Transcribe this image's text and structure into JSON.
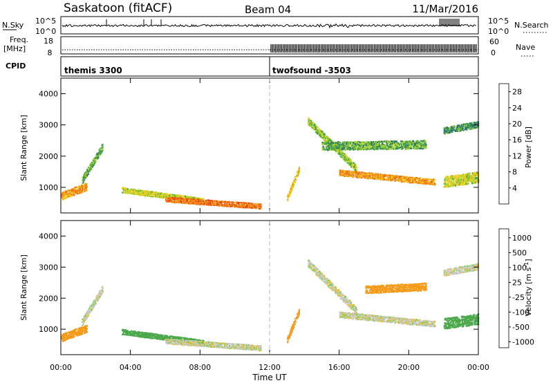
{
  "header": {
    "station": "Saskatoon (fitACF)",
    "beam": "Beam 04",
    "date": "11/Mar/2016"
  },
  "noise_panel": {
    "left_label": "N.Sky",
    "right_label": "N.Search",
    "left_ticks": [
      "10^5",
      "10^0"
    ],
    "right_ticks": [
      "10^5",
      "10^0"
    ]
  },
  "freq_panel": {
    "left_label_1": "Freq.",
    "left_label_2": "[MHz]",
    "left_ticks": [
      "18",
      "8"
    ],
    "right_label": "Nave",
    "right_ticks": [
      "60",
      "0"
    ]
  },
  "cpid_panel": {
    "label": "CPID",
    "modes": [
      {
        "name": "themis 3300",
        "start_hour": 0,
        "end_hour": 12
      },
      {
        "name": "twofsound -3503",
        "start_hour": 12,
        "end_hour": 24
      }
    ]
  },
  "chart_data": [
    {
      "type": "heatmap",
      "title": "",
      "quantity": "Power",
      "ylabel": "Slant Range [km]",
      "xlabel": "",
      "x_ticks": [
        "00:00",
        "04:00",
        "08:00",
        "12:00",
        "16:00",
        "20:00",
        "00:00"
      ],
      "xlim": [
        0,
        24
      ],
      "ylim": [
        180,
        4500
      ],
      "y_ticks": [
        1000,
        2000,
        3000,
        4000
      ],
      "colorbar": {
        "label": "Power [dB]",
        "ticks": [
          "4",
          "8",
          "12",
          "16",
          "20",
          "24",
          "28"
        ],
        "range": [
          0,
          30
        ],
        "colors": [
          "#1c1ce0",
          "#2850b4",
          "#307a5a",
          "#46a84a",
          "#b2d32a",
          "#f2cc1c",
          "#f59a18",
          "#f06a16",
          "#e03218"
        ]
      },
      "echo_bands": [
        {
          "t_start": 0.0,
          "t_end": 1.5,
          "range_start": 700,
          "range_end": 1000,
          "width": 260,
          "value": 22
        },
        {
          "t_start": 1.2,
          "t_end": 2.4,
          "range_start": 1200,
          "range_end": 2300,
          "width": 230,
          "value": 12
        },
        {
          "t_start": 3.5,
          "t_end": 8.2,
          "range_start": 900,
          "range_end": 550,
          "width": 180,
          "value": 16
        },
        {
          "t_start": 6.0,
          "t_end": 11.5,
          "range_start": 600,
          "range_end": 380,
          "width": 180,
          "value": 24
        },
        {
          "t_start": 13.0,
          "t_end": 13.7,
          "range_start": 650,
          "range_end": 1600,
          "width": 200,
          "value": 20
        },
        {
          "t_start": 14.2,
          "t_end": 17.0,
          "range_start": 3100,
          "range_end": 1550,
          "width": 250,
          "value": 14
        },
        {
          "t_start": 16.0,
          "t_end": 21.5,
          "range_start": 1450,
          "range_end": 1150,
          "width": 200,
          "value": 22
        },
        {
          "t_start": 15.0,
          "t_end": 21.0,
          "range_start": 2300,
          "range_end": 2350,
          "width": 280,
          "value": 12
        },
        {
          "t_start": 22.0,
          "t_end": 24.0,
          "range_start": 1150,
          "range_end": 1300,
          "width": 350,
          "value": 16
        },
        {
          "t_start": 22.0,
          "t_end": 24.0,
          "range_start": 2800,
          "range_end": 3000,
          "width": 220,
          "value": 10
        }
      ]
    },
    {
      "type": "heatmap",
      "title": "",
      "quantity": "Velocity",
      "ylabel": "Slant Range [km]",
      "xlabel": "Time UT",
      "x_ticks": [
        "00:00",
        "04:00",
        "08:00",
        "12:00",
        "16:00",
        "20:00",
        "00:00"
      ],
      "xlim": [
        0,
        24
      ],
      "ylim": [
        180,
        4500
      ],
      "y_ticks": [
        1000,
        2000,
        3000,
        4000
      ],
      "colorbar": {
        "label": "Velocity [m s^-1]",
        "unit_main": "Velocity [m s",
        "unit_exp": "-1",
        "unit_end": "]",
        "ticks": [
          "1000",
          "500",
          "100",
          "25",
          "-25",
          "-100",
          "-500",
          "-1000"
        ],
        "colors": [
          "#1a3fb0",
          "#2a7a7a",
          "#4aa84a",
          "#7ad04a",
          "#c8c8c4",
          "#c8c8c4",
          "#f0c020",
          "#f59a18",
          "#ee6a16",
          "#e02818"
        ]
      },
      "echo_bands": [
        {
          "t_start": 0.0,
          "t_end": 1.5,
          "range_start": 700,
          "range_end": 1000,
          "width": 260,
          "value": -150
        },
        {
          "t_start": 1.2,
          "t_end": 2.4,
          "range_start": 1200,
          "range_end": 2300,
          "width": 230,
          "value": 0
        },
        {
          "t_start": 3.5,
          "t_end": 8.2,
          "range_start": 900,
          "range_end": 550,
          "width": 180,
          "value": 150
        },
        {
          "t_start": 6.0,
          "t_end": 11.5,
          "range_start": 600,
          "range_end": 380,
          "width": 180,
          "value": 0
        },
        {
          "t_start": 13.0,
          "t_end": 13.7,
          "range_start": 650,
          "range_end": 1600,
          "width": 200,
          "value": -300
        },
        {
          "t_start": 14.2,
          "t_end": 17.0,
          "range_start": 3100,
          "range_end": 1550,
          "width": 250,
          "value": 0
        },
        {
          "t_start": 16.0,
          "t_end": 21.5,
          "range_start": 1450,
          "range_end": 1150,
          "width": 200,
          "value": 0
        },
        {
          "t_start": 17.5,
          "t_end": 21.0,
          "range_start": 2250,
          "range_end": 2350,
          "width": 260,
          "value": -300
        },
        {
          "t_start": 22.0,
          "t_end": 24.0,
          "range_start": 1150,
          "range_end": 1300,
          "width": 350,
          "value": 150
        },
        {
          "t_start": 22.0,
          "t_end": 24.0,
          "range_start": 2800,
          "range_end": 3000,
          "width": 220,
          "value": 0
        }
      ]
    }
  ],
  "colors": {
    "background": "#ffffff",
    "axis": "#000000",
    "divider": "#aaaaaa"
  }
}
